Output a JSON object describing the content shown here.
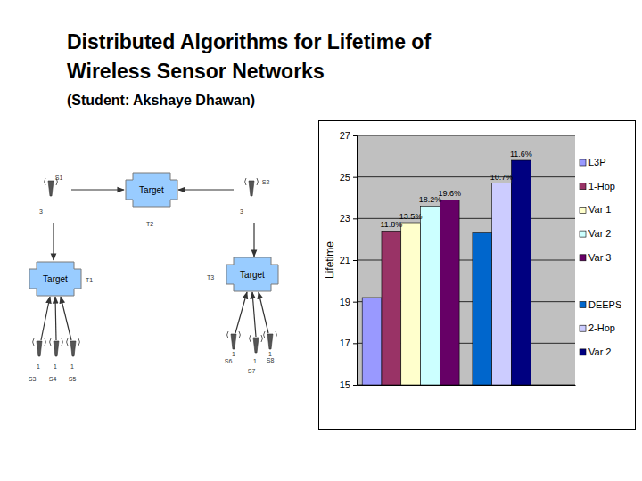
{
  "slide": {
    "title": [
      "Distributed Algorithms for Lifetime of",
      "Wireless Sensor Networks"
    ],
    "subtitle": "(Student: Akshaye Dhawan)"
  },
  "diagram": {
    "targets": [
      {
        "name": "T1",
        "label": "Target"
      },
      {
        "name": "T2",
        "label": "Target"
      },
      {
        "name": "T3",
        "label": "Target"
      }
    ],
    "sensors": [
      {
        "name": "S1",
        "value": 3
      },
      {
        "name": "S2",
        "value": 3
      },
      {
        "name": "S3",
        "value": 1
      },
      {
        "name": "S4",
        "value": 1
      },
      {
        "name": "S5",
        "value": 1
      },
      {
        "name": "S6",
        "value": 1
      },
      {
        "name": "S7",
        "value": 1
      },
      {
        "name": "S8",
        "value": 1
      }
    ]
  },
  "chart_data": {
    "type": "bar",
    "y_label": "Lifetime",
    "categories": [
      null,
      null
    ],
    "ylim": [
      15,
      27
    ],
    "yticks": [
      15,
      17,
      19,
      21,
      23,
      25,
      27
    ],
    "grid": true,
    "legend": "right",
    "tick_labels": "y",
    "series": [
      {
        "name": "L3P",
        "color": "#9999ff",
        "values": [
          19.2,
          null
        ]
      },
      {
        "name": "1-Hop",
        "color": "#993366",
        "values": [
          22.4,
          null
        ],
        "annotations": [
          "11.8%",
          null
        ]
      },
      {
        "name": "Var 1",
        "color": "#ffffcc",
        "values": [
          22.8,
          null
        ],
        "annotations": [
          "13.5%",
          null
        ]
      },
      {
        "name": "Var 2",
        "color": "#ccffff",
        "values": [
          23.6,
          null
        ],
        "annotations": [
          "18.2%",
          null
        ]
      },
      {
        "name": "Var 3",
        "color": "#660066",
        "values": [
          23.9,
          null
        ],
        "annotations": [
          "19.6%",
          null
        ]
      },
      {
        "name": "DEEPS",
        "color": "#0066cc",
        "values": [
          null,
          22.3
        ]
      },
      {
        "name": "2-Hop",
        "color": "#ccccff",
        "values": [
          null,
          24.7
        ],
        "annotations": [
          null,
          "10.7%"
        ]
      },
      {
        "name": "Var 2",
        "color": "#000080",
        "values": [
          null,
          25.8
        ],
        "annotations": [
          null,
          "11.6%"
        ]
      }
    ]
  }
}
